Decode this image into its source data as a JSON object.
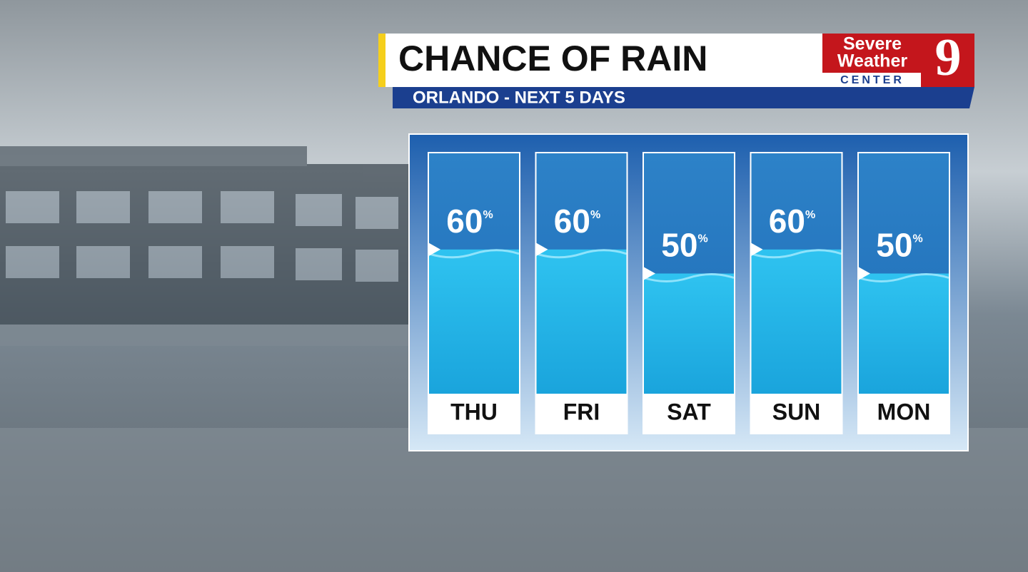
{
  "chart_data": {
    "type": "bar",
    "title": "CHANCE OF RAIN",
    "subtitle": "ORLANDO - NEXT 5 DAYS",
    "categories": [
      "THU",
      "FRI",
      "SAT",
      "SUN",
      "MON"
    ],
    "values": [
      60,
      60,
      50,
      60,
      50
    ],
    "unit": "%"
  },
  "logo": {
    "line1": "Severe",
    "line2": "Weather",
    "line3": "CENTER",
    "channel": "9"
  }
}
